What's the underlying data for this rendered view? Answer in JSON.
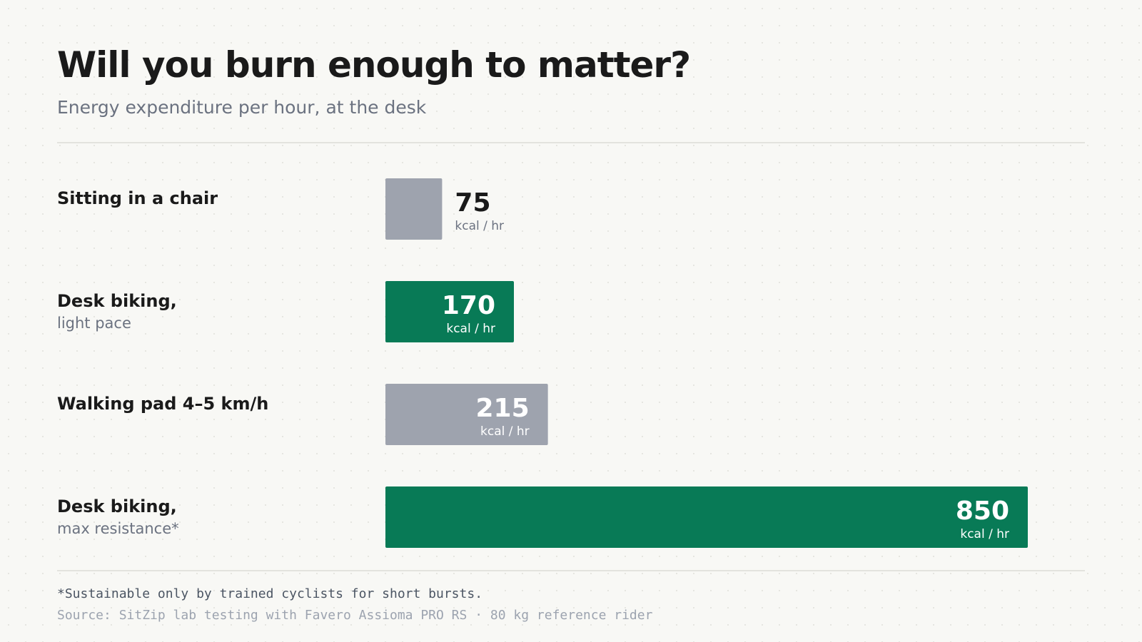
{
  "chart_data": {
    "type": "bar",
    "title": "Will you burn enough to matter?",
    "subtitle": "Energy expenditure per hour, at the desk",
    "categories": [
      "Sitting in a chair",
      "Desk biking,",
      "Walking pad 4–5 km/h",
      "Desk biking,"
    ],
    "sublabels": [
      null,
      "light pace",
      null,
      "max resistance*"
    ],
    "values": [
      75,
      170,
      215,
      850
    ],
    "unit": "kcal / hr",
    "colors": [
      "#9ea3ae",
      "#087a56",
      "#9ea3ae",
      "#087a56"
    ],
    "note": "*Sustainable only by trained cyclists for short bursts.",
    "source": "Source: SitZip lab testing with Favero Assioma PRO RS · 80 kg reference rider"
  }
}
